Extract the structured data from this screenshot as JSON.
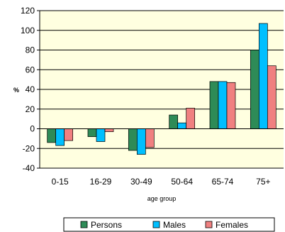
{
  "chart_data": {
    "type": "bar",
    "categories": [
      "0-15",
      "16-29",
      "30-49",
      "50-64",
      "65-74",
      "75+"
    ],
    "series": [
      {
        "name": "Persons",
        "color": "#2e8b57",
        "values": [
          -14,
          -8,
          -22,
          14,
          48,
          80
        ]
      },
      {
        "name": "Males",
        "color": "#00bfff",
        "values": [
          -17,
          -13,
          -26,
          6,
          48,
          107
        ]
      },
      {
        "name": "Females",
        "color": "#f08080",
        "values": [
          -12,
          -3,
          -19,
          21,
          47,
          64
        ]
      }
    ],
    "xlabel": "age group",
    "ylabel": "%",
    "ylim": [
      -40,
      120
    ],
    "yticks": [
      "-40",
      "-20",
      "0",
      "20",
      "40",
      "60",
      "80",
      "100",
      "120"
    ],
    "ytick_values": [
      -40,
      -20,
      0,
      20,
      40,
      60,
      80,
      100,
      120
    ],
    "grid": true,
    "plot_background": "#ffffe0",
    "legend_position": "bottom"
  }
}
